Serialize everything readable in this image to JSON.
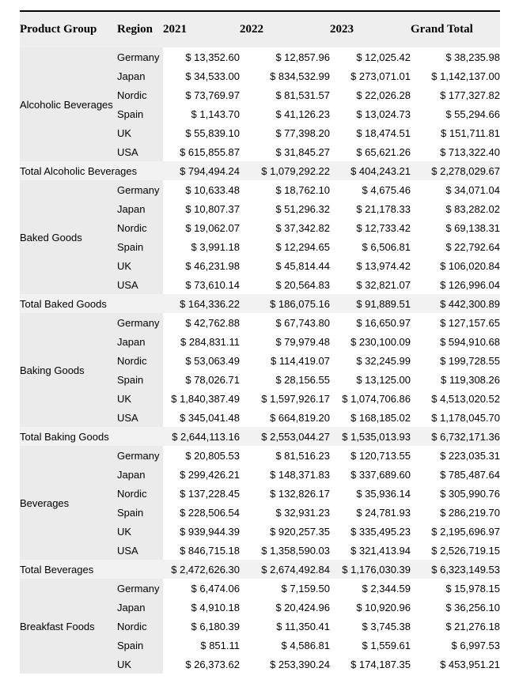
{
  "table": {
    "columns": [
      "Product Group",
      "Region",
      "2021",
      "2022",
      "2023",
      "Grand Total"
    ],
    "groups": [
      {
        "name": "Alcoholic Beverages",
        "rows": [
          {
            "region": "Germany",
            "values": [
              "$ 13,352.60",
              "$ 12,857.96",
              "$ 12,025.42",
              "$ 38,235.98"
            ]
          },
          {
            "region": "Japan",
            "values": [
              "$ 34,533.00",
              "$ 834,532.99",
              "$ 273,071.01",
              "$ 1,142,137.00"
            ]
          },
          {
            "region": "Nordic",
            "values": [
              "$ 73,769.97",
              "$ 81,531.57",
              "$ 22,026.28",
              "$ 177,327.82"
            ]
          },
          {
            "region": "Spain",
            "values": [
              "$ 1,143.70",
              "$ 41,126.23",
              "$ 13,024.73",
              "$ 55,294.66"
            ]
          },
          {
            "region": "UK",
            "values": [
              "$ 55,839.10",
              "$ 77,398.20",
              "$ 18,474.51",
              "$ 151,711.81"
            ]
          },
          {
            "region": "USA",
            "values": [
              "$ 615,855.87",
              "$ 31,845.27",
              "$ 65,621.26",
              "$ 713,322.40"
            ]
          }
        ],
        "total": {
          "label": "Total Alcoholic Beverages",
          "values": [
            "$ 794,494.24",
            "$ 1,079,292.22",
            "$ 404,243.21",
            "$ 2,278,029.67"
          ]
        }
      },
      {
        "name": "Baked Goods",
        "rows": [
          {
            "region": "Germany",
            "values": [
              "$ 10,633.48",
              "$ 18,762.10",
              "$ 4,675.46",
              "$ 34,071.04"
            ]
          },
          {
            "region": "Japan",
            "values": [
              "$ 10,807.37",
              "$ 51,296.32",
              "$ 21,178.33",
              "$ 83,282.02"
            ]
          },
          {
            "region": "Nordic",
            "values": [
              "$ 19,062.07",
              "$ 37,342.82",
              "$ 12,733.42",
              "$ 69,138.31"
            ]
          },
          {
            "region": "Spain",
            "values": [
              "$ 3,991.18",
              "$ 12,294.65",
              "$ 6,506.81",
              "$ 22,792.64"
            ]
          },
          {
            "region": "UK",
            "values": [
              "$ 46,231.98",
              "$ 45,814.44",
              "$ 13,974.42",
              "$ 106,020.84"
            ]
          },
          {
            "region": "USA",
            "values": [
              "$ 73,610.14",
              "$ 20,564.83",
              "$ 32,821.07",
              "$ 126,996.04"
            ]
          }
        ],
        "total": {
          "label": "Total Baked Goods",
          "values": [
            "$ 164,336.22",
            "$ 186,075.16",
            "$ 91,889.51",
            "$ 442,300.89"
          ]
        }
      },
      {
        "name": "Baking Goods",
        "rows": [
          {
            "region": "Germany",
            "values": [
              "$ 42,762.88",
              "$ 67,743.80",
              "$ 16,650.97",
              "$ 127,157.65"
            ]
          },
          {
            "region": "Japan",
            "values": [
              "$ 284,831.11",
              "$ 79,979.48",
              "$ 230,100.09",
              "$ 594,910.68"
            ]
          },
          {
            "region": "Nordic",
            "values": [
              "$ 53,063.49",
              "$ 114,419.07",
              "$ 32,245.99",
              "$ 199,728.55"
            ]
          },
          {
            "region": "Spain",
            "values": [
              "$ 78,026.71",
              "$ 28,156.55",
              "$ 13,125.00",
              "$ 119,308.26"
            ]
          },
          {
            "region": "UK",
            "values": [
              "$ 1,840,387.49",
              "$ 1,597,926.17",
              "$ 1,074,706.86",
              "$ 4,513,020.52"
            ]
          },
          {
            "region": "USA",
            "values": [
              "$ 345,041.48",
              "$ 664,819.20",
              "$ 168,185.02",
              "$ 1,178,045.70"
            ]
          }
        ],
        "total": {
          "label": "Total Baking Goods",
          "values": [
            "$ 2,644,113.16",
            "$ 2,553,044.27",
            "$ 1,535,013.93",
            "$ 6,732,171.36"
          ]
        }
      },
      {
        "name": "Beverages",
        "rows": [
          {
            "region": "Germany",
            "values": [
              "$ 20,805.53",
              "$ 81,516.23",
              "$ 120,713.55",
              "$ 223,035.31"
            ]
          },
          {
            "region": "Japan",
            "values": [
              "$ 299,426.21",
              "$ 148,371.83",
              "$ 337,689.60",
              "$ 785,487.64"
            ]
          },
          {
            "region": "Nordic",
            "values": [
              "$ 137,228.45",
              "$ 132,826.17",
              "$ 35,936.14",
              "$ 305,990.76"
            ]
          },
          {
            "region": "Spain",
            "values": [
              "$ 228,506.54",
              "$ 32,931.23",
              "$ 24,781.93",
              "$ 286,219.70"
            ]
          },
          {
            "region": "UK",
            "values": [
              "$ 939,944.39",
              "$ 920,257.35",
              "$ 335,495.23",
              "$ 2,195,696.97"
            ]
          },
          {
            "region": "USA",
            "values": [
              "$ 846,715.18",
              "$ 1,358,590.03",
              "$ 321,413.94",
              "$ 2,526,719.15"
            ]
          }
        ],
        "total": {
          "label": "Total Beverages",
          "values": [
            "$ 2,472,626.30",
            "$ 2,674,492.84",
            "$ 1,176,030.39",
            "$ 6,323,149.53"
          ]
        }
      },
      {
        "name": "Breakfast Foods",
        "rows": [
          {
            "region": "Germany",
            "values": [
              "$ 6,474.06",
              "$ 7,159.50",
              "$ 2,344.59",
              "$ 15,978.15"
            ]
          },
          {
            "region": "Japan",
            "values": [
              "$ 4,910.18",
              "$ 20,424.96",
              "$ 10,920.96",
              "$ 36,256.10"
            ]
          },
          {
            "region": "Nordic",
            "values": [
              "$ 6,180.39",
              "$ 11,350.41",
              "$ 3,745.38",
              "$ 21,276.18"
            ]
          },
          {
            "region": "Spain",
            "values": [
              "$ 851.11",
              "$ 4,586.81",
              "$ 1,559.61",
              "$ 6,997.53"
            ]
          },
          {
            "region": "UK",
            "values": [
              "$ 26,373.62",
              "$ 253,390.24",
              "$ 174,187.35",
              "$ 453,951.21"
            ]
          }
        ],
        "total": null
      }
    ]
  }
}
